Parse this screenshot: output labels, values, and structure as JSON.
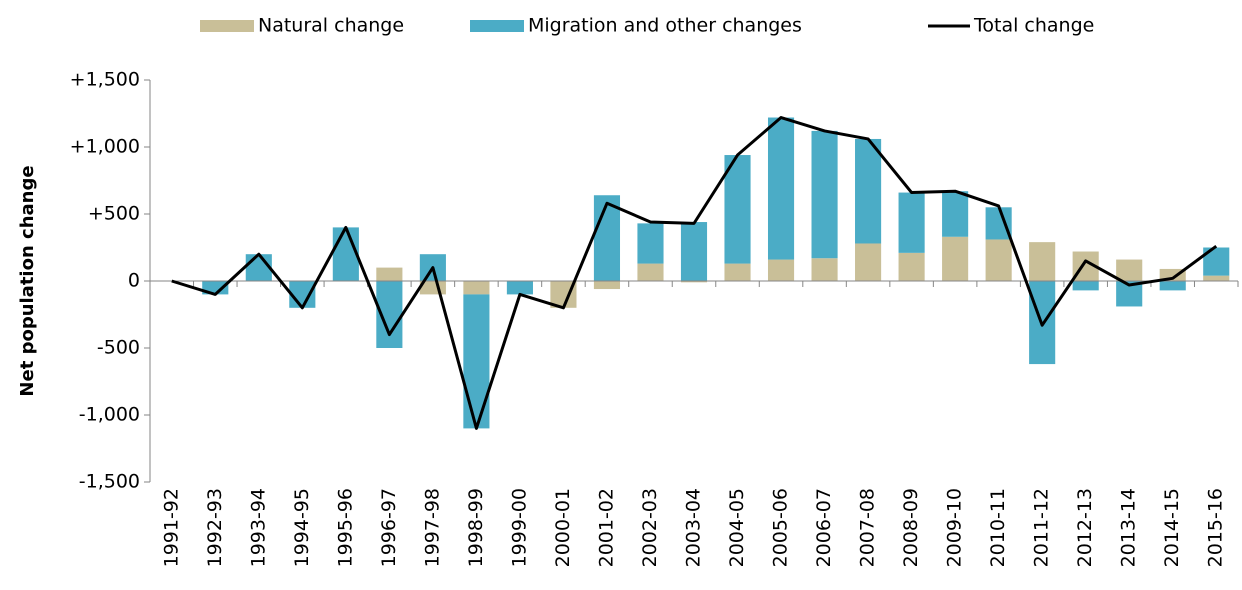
{
  "chart_data": {
    "type": "bar",
    "y_label": "Net population change",
    "legend": "top",
    "categories": [
      "1991-92",
      "1992-93",
      "1993-94",
      "1994-95",
      "1995-96",
      "1996-97",
      "1997-98",
      "1998-99",
      "1999-00",
      "2000-01",
      "2001-02",
      "2002-03",
      "2003-04",
      "2004-05",
      "2005-06",
      "2006-07",
      "2007-08",
      "2008-09",
      "2009-10",
      "2010-11",
      "2011-12",
      "2012-13",
      "2013-14",
      "2014-15",
      "2015-16"
    ],
    "series": [
      {
        "name": "Natural change",
        "type": "bar",
        "color": "#c9bf98",
        "values": [
          0,
          0,
          0,
          0,
          0,
          100,
          -100,
          -100,
          0,
          -200,
          -60,
          130,
          -10,
          130,
          160,
          170,
          280,
          210,
          330,
          310,
          290,
          220,
          160,
          90,
          40
        ]
      },
      {
        "name": "Migration and other changes",
        "type": "bar",
        "color": "#4bacc6",
        "values": [
          0,
          -100,
          200,
          -200,
          400,
          -500,
          200,
          -1000,
          -100,
          0,
          640,
          300,
          440,
          810,
          1060,
          950,
          780,
          450,
          340,
          240,
          -620,
          -70,
          -190,
          -70,
          210
        ]
      },
      {
        "name": "Total change",
        "type": "line",
        "color": "#000000",
        "values": [
          0,
          -100,
          200,
          -200,
          400,
          -400,
          100,
          -1100,
          -100,
          -200,
          580,
          440,
          430,
          940,
          1220,
          1120,
          1060,
          660,
          670,
          560,
          -330,
          150,
          -30,
          20,
          260
        ]
      }
    ],
    "ylim": [
      -1500,
      1500
    ],
    "yticks": [
      {
        "value": -1500,
        "label": "-1,500"
      },
      {
        "value": -1000,
        "label": "-1,000"
      },
      {
        "value": -500,
        "label": "-500"
      },
      0,
      {
        "value": 500,
        "label": "+500"
      },
      {
        "value": 1000,
        "label": "+1,000"
      },
      {
        "value": 1500,
        "label": "+1,500"
      }
    ],
    "grid": false
  }
}
